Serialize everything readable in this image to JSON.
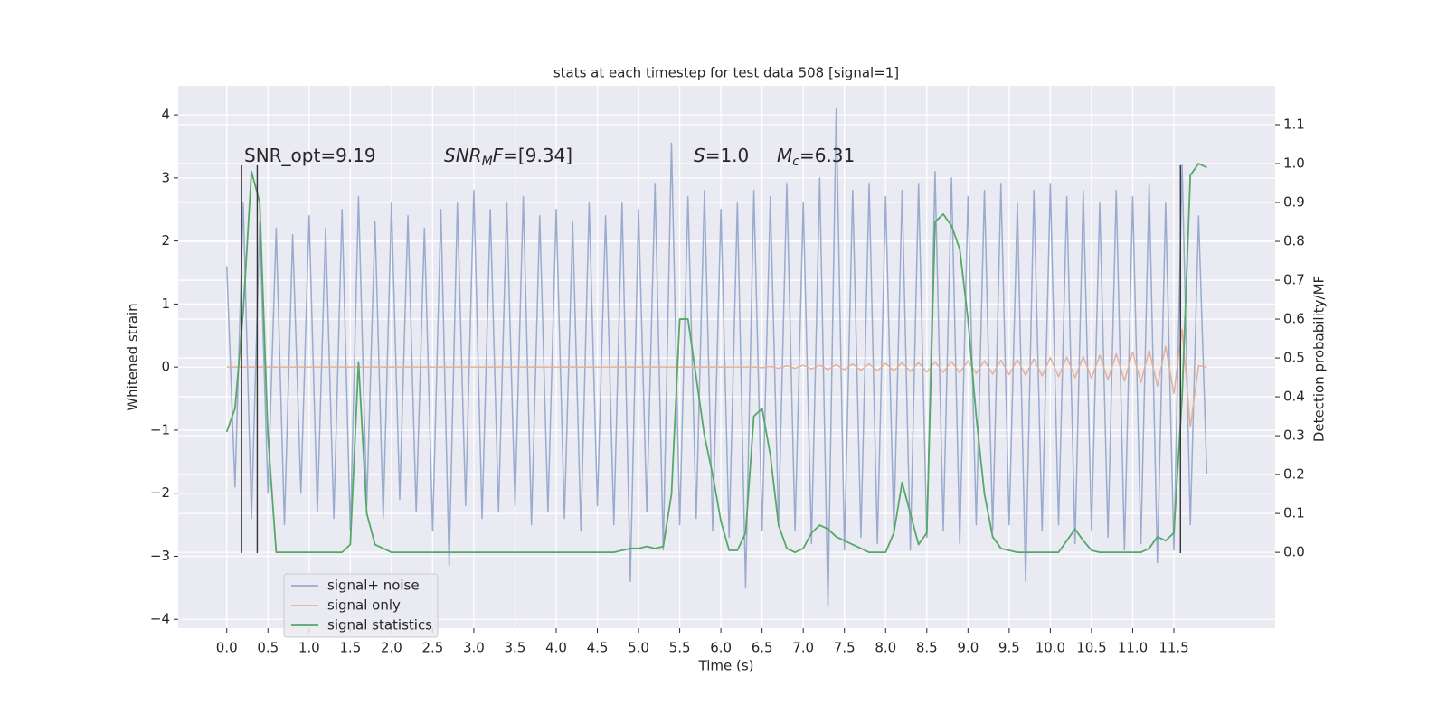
{
  "chart_data": {
    "type": "line",
    "title": "stats at each timestep for test data 508 [signal=1]",
    "xlabel": "Time (s)",
    "ylabel": "Whitened strain",
    "y2label": "Detection probability/MF",
    "xlim": [
      -0.59,
      12.73
    ],
    "ylim": [
      -4.14,
      4.46
    ],
    "y2lim": [
      -0.195,
      1.2
    ],
    "xticks": [
      {
        "value": 0,
        "label": "0.0"
      },
      0.5,
      {
        "value": 1,
        "label": "1.0"
      },
      1.5,
      {
        "value": 2,
        "label": "2.0"
      },
      2.5,
      {
        "value": 3,
        "label": "3.0"
      },
      3.5,
      {
        "value": 4,
        "label": "4.0"
      },
      4.5,
      {
        "value": 5,
        "label": "5.0"
      },
      5.5,
      {
        "value": 6,
        "label": "6.0"
      },
      6.5,
      {
        "value": 7,
        "label": "7.0"
      },
      7.5,
      {
        "value": 8,
        "label": "8.0"
      },
      8.5,
      {
        "value": 9,
        "label": "9.0"
      },
      9.5,
      {
        "value": 10,
        "label": "10.0"
      },
      10.5,
      {
        "value": 11,
        "label": "11.0"
      },
      11.5
    ],
    "yticks": [
      {
        "value": -4,
        "label": "−4"
      },
      {
        "value": -3,
        "label": "−3"
      },
      {
        "value": -2,
        "label": "−2"
      },
      {
        "value": -1,
        "label": "−1"
      },
      0,
      1,
      2,
      3,
      4
    ],
    "y2ticks": [
      {
        "value": 0,
        "label": "0.0"
      },
      0.1,
      0.2,
      0.3,
      0.4,
      0.5,
      0.6,
      0.7,
      0.8,
      0.9,
      {
        "value": 1,
        "label": "1.0"
      },
      1.1
    ],
    "grid": true,
    "legend": "lower left",
    "x": [
      0,
      0.1,
      0.2,
      0.3,
      0.4,
      0.5,
      0.6,
      0.7,
      0.8,
      0.9,
      1,
      1.1,
      1.2,
      1.3,
      1.4,
      1.5,
      1.6,
      1.7,
      1.8,
      1.9,
      2,
      2.1,
      2.2,
      2.3,
      2.4,
      2.5,
      2.6,
      2.7,
      2.8,
      2.9,
      3,
      3.1,
      3.2,
      3.3,
      3.4,
      3.5,
      3.6,
      3.7,
      3.8,
      3.9,
      4,
      4.1,
      4.2,
      4.3,
      4.4,
      4.5,
      4.6,
      4.7,
      4.8,
      4.9,
      5,
      5.1,
      5.2,
      5.3,
      5.4,
      5.5,
      5.6,
      5.7,
      5.8,
      5.9,
      6,
      6.1,
      6.2,
      6.3,
      6.4,
      6.5,
      6.6,
      6.7,
      6.8,
      6.9,
      7,
      7.1,
      7.2,
      7.3,
      7.4,
      7.5,
      7.6,
      7.7,
      7.8,
      7.9,
      8,
      8.1,
      8.2,
      8.3,
      8.4,
      8.5,
      8.6,
      8.7,
      8.8,
      8.9,
      9,
      9.1,
      9.2,
      9.3,
      9.4,
      9.5,
      9.6,
      9.7,
      9.8,
      9.9,
      10,
      10.1,
      10.2,
      10.3,
      10.4,
      10.5,
      10.6,
      10.7,
      10.8,
      10.9,
      11,
      11.1,
      11.2,
      11.3,
      11.4,
      11.5,
      11.6,
      11.7,
      11.8,
      11.9
    ],
    "series": [
      {
        "name": "signal+ noise",
        "color": "#9aabce",
        "values": [
          1.6,
          -1.9,
          2.6,
          -2.4,
          2.3,
          -2.0,
          2.2,
          -2.5,
          2.1,
          -2.0,
          2.4,
          -2.3,
          2.2,
          -2.4,
          2.5,
          -2.6,
          2.7,
          -2.2,
          2.3,
          -2.4,
          2.6,
          -2.1,
          2.4,
          -2.3,
          2.2,
          -2.6,
          2.5,
          -3.15,
          2.6,
          -2.2,
          2.8,
          -2.4,
          2.5,
          -2.3,
          2.6,
          -2.2,
          2.7,
          -2.5,
          2.4,
          -2.3,
          2.5,
          -2.4,
          2.3,
          -2.6,
          2.6,
          -2.2,
          2.4,
          -2.5,
          2.6,
          -3.4,
          2.5,
          -2.3,
          2.9,
          -2.9,
          3.55,
          -2.5,
          2.7,
          -2.4,
          2.8,
          -2.6,
          2.5,
          -2.7,
          2.6,
          -3.5,
          2.8,
          -2.6,
          2.7,
          -2.5,
          2.9,
          -2.6,
          2.6,
          -2.8,
          3.0,
          -3.8,
          4.1,
          -2.9,
          2.8,
          -2.7,
          2.9,
          -2.8,
          2.7,
          -2.6,
          2.8,
          -2.9,
          2.9,
          -2.7,
          3.1,
          -2.6,
          3.0,
          -2.8,
          2.7,
          -2.5,
          2.8,
          -2.6,
          2.9,
          -2.5,
          2.6,
          -3.4,
          2.8,
          -2.6,
          2.9,
          -2.5,
          2.7,
          -2.8,
          2.8,
          -2.6,
          2.6,
          -2.7,
          2.8,
          -2.9,
          2.7,
          -2.8,
          2.9,
          -3.1,
          2.6,
          -2.9,
          3.2,
          -2.5,
          2.4,
          -1.7
        ]
      },
      {
        "name": "signal only",
        "color": "#e3b09a",
        "values": [
          0,
          0,
          0,
          0,
          0,
          0,
          0,
          0,
          0,
          0,
          0,
          0,
          0,
          0,
          0,
          0,
          0,
          0,
          0,
          0,
          0,
          0,
          0,
          0,
          0,
          0,
          0,
          0,
          0,
          0,
          0,
          0,
          0,
          0,
          0,
          0,
          0,
          0,
          0,
          0,
          0,
          0,
          0,
          0,
          0,
          0,
          0,
          0,
          0,
          0,
          0,
          0,
          0,
          0,
          0,
          0,
          0,
          0,
          0,
          0,
          0,
          0,
          0,
          0,
          0,
          -0.01,
          0.01,
          -0.02,
          0.02,
          -0.02,
          0.03,
          -0.03,
          0.03,
          -0.04,
          0.04,
          -0.04,
          0.05,
          -0.05,
          0.05,
          -0.06,
          0.06,
          -0.06,
          0.07,
          -0.07,
          0.07,
          -0.08,
          0.08,
          -0.08,
          0.09,
          -0.09,
          0.1,
          -0.1,
          0.1,
          -0.11,
          0.11,
          -0.12,
          0.12,
          -0.13,
          0.13,
          -0.14,
          0.15,
          -0.15,
          0.16,
          -0.17,
          0.17,
          -0.18,
          0.19,
          -0.2,
          0.21,
          -0.22,
          0.24,
          -0.25,
          0.27,
          -0.3,
          0.33,
          -0.42,
          0.6,
          -0.95,
          0.02,
          0
        ]
      },
      {
        "name": "signal statistics",
        "color": "#55a868",
        "axis": "y2",
        "values": [
          0.31,
          0.37,
          0.62,
          0.98,
          0.9,
          0.3,
          0,
          0,
          0,
          0,
          0,
          0,
          0,
          0,
          0,
          0.02,
          0.49,
          0.1,
          0.02,
          0.01,
          0,
          0,
          0,
          0,
          0,
          0,
          0,
          0,
          0,
          0,
          0,
          0,
          0,
          0,
          0,
          0,
          0,
          0,
          0,
          0,
          0,
          0,
          0,
          0,
          0,
          0,
          0,
          0,
          0.005,
          0.01,
          0.01,
          0.015,
          0.01,
          0.015,
          0.15,
          0.6,
          0.6,
          0.45,
          0.3,
          0.2,
          0.08,
          0.005,
          0.005,
          0.05,
          0.35,
          0.37,
          0.25,
          0.07,
          0.01,
          0,
          0.01,
          0.05,
          0.07,
          0.06,
          0.04,
          0.03,
          0.02,
          0.01,
          0,
          0,
          0,
          0.05,
          0.18,
          0.1,
          0.02,
          0.05,
          0.85,
          0.87,
          0.84,
          0.78,
          0.6,
          0.35,
          0.15,
          0.04,
          0.01,
          0.005,
          0,
          0,
          0,
          0,
          0,
          0,
          0.03,
          0.06,
          0.03,
          0.005,
          0,
          0,
          0,
          0,
          0,
          0,
          0.01,
          0.04,
          0.03,
          0.05,
          0.4,
          0.97,
          1.0,
          0.99
        ]
      }
    ],
    "vlines": {
      "x": [
        0.18,
        0.37,
        11.58
      ],
      "ymin": -2.95,
      "ymax": 3.2,
      "color": "#333333"
    },
    "annotations": [
      [
        {
          "text": "SNR_opt=9.19"
        }
      ],
      [
        {
          "text": "SNR",
          "style": "italic"
        },
        {
          "text": "M",
          "style": "sub"
        },
        {
          "text": "F",
          "style": "italic"
        },
        {
          "text": "=[9.34]"
        }
      ],
      [
        {
          "text": "S",
          "style": "italic"
        },
        {
          "text": "=1.0"
        }
      ],
      [
        {
          "text": "M",
          "style": "italic"
        },
        {
          "text": "c",
          "style": "sub"
        },
        {
          "text": "=6.31"
        }
      ]
    ]
  }
}
